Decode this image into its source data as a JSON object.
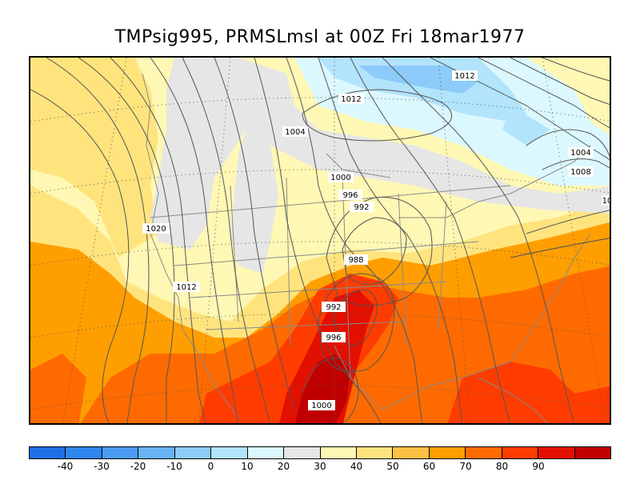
{
  "title": "TMPsig995, PRMSLmsl at 00Z Fri 18mar1977",
  "colorbar": {
    "colors": [
      "#1f6fe6",
      "#2f86ee",
      "#4b9cf2",
      "#68b3f6",
      "#8ccbfa",
      "#b2e4fc",
      "#dcf8ff",
      "#e6e6e6",
      "#fff8b4",
      "#ffe47e",
      "#ffc044",
      "#ff9e00",
      "#ff6a00",
      "#ff3c00",
      "#e21000",
      "#c00000"
    ],
    "ticks": [
      "-40",
      "-30",
      "-20",
      "-10",
      "0",
      "10",
      "20",
      "30",
      "40",
      "50",
      "60",
      "70",
      "80",
      "90"
    ]
  },
  "contour_labels": [
    "1012",
    "1012",
    "1004",
    "1004",
    "1008",
    "1000",
    "996",
    "992",
    "1020",
    "10",
    "988",
    "1012",
    "992",
    "996",
    "1000"
  ]
}
